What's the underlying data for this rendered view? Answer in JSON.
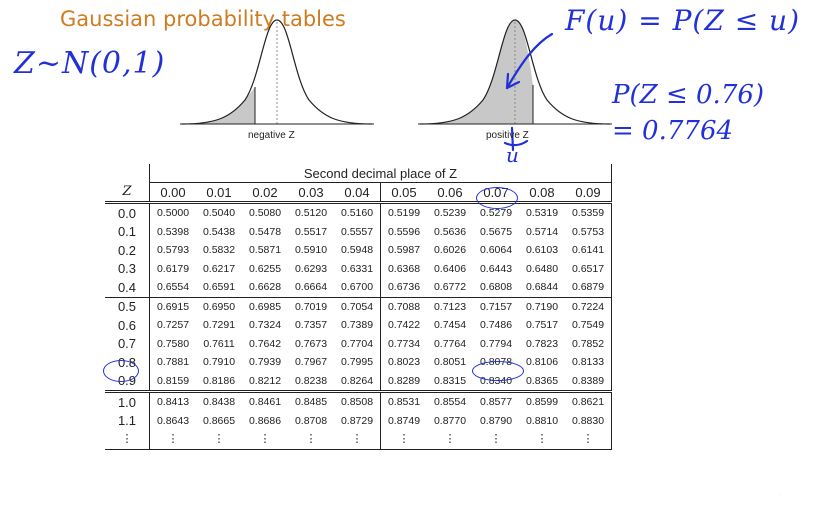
{
  "title": "Gaussian probability tables",
  "annotations": {
    "distribution": "Z~N(0,1)",
    "definition": "F(u) = P(Z ≤ u)",
    "probability": "P(Z ≤ 0.76)",
    "value": "= 0.7764",
    "u_label": "u"
  },
  "curves": {
    "negative_label": "negative Z",
    "positive_label": "positive Z"
  },
  "table": {
    "span_header": "Second decimal place of Z",
    "z_header": "Z",
    "columns": [
      "0.00",
      "0.01",
      "0.02",
      "0.03",
      "0.04",
      "0.05",
      "0.06",
      "0.07",
      "0.08",
      "0.09"
    ],
    "rows": [
      {
        "z": "0.0",
        "values": [
          "0.5000",
          "0.5040",
          "0.5080",
          "0.5120",
          "0.5160",
          "0.5199",
          "0.5239",
          "0.5279",
          "0.5319",
          "0.5359"
        ]
      },
      {
        "z": "0.1",
        "values": [
          "0.5398",
          "0.5438",
          "0.5478",
          "0.5517",
          "0.5557",
          "0.5596",
          "0.5636",
          "0.5675",
          "0.5714",
          "0.5753"
        ]
      },
      {
        "z": "0.2",
        "values": [
          "0.5793",
          "0.5832",
          "0.5871",
          "0.5910",
          "0.5948",
          "0.5987",
          "0.6026",
          "0.6064",
          "0.6103",
          "0.6141"
        ]
      },
      {
        "z": "0.3",
        "values": [
          "0.6179",
          "0.6217",
          "0.6255",
          "0.6293",
          "0.6331",
          "0.6368",
          "0.6406",
          "0.6443",
          "0.6480",
          "0.6517"
        ]
      },
      {
        "z": "0.4",
        "values": [
          "0.6554",
          "0.6591",
          "0.6628",
          "0.6664",
          "0.6700",
          "0.6736",
          "0.6772",
          "0.6808",
          "0.6844",
          "0.6879"
        ]
      },
      {
        "z": "0.5",
        "values": [
          "0.6915",
          "0.6950",
          "0.6985",
          "0.7019",
          "0.7054",
          "0.7088",
          "0.7123",
          "0.7157",
          "0.7190",
          "0.7224"
        ]
      },
      {
        "z": "0.6",
        "values": [
          "0.7257",
          "0.7291",
          "0.7324",
          "0.7357",
          "0.7389",
          "0.7422",
          "0.7454",
          "0.7486",
          "0.7517",
          "0.7549"
        ]
      },
      {
        "z": "0.7",
        "values": [
          "0.7580",
          "0.7611",
          "0.7642",
          "0.7673",
          "0.7704",
          "0.7734",
          "0.7764",
          "0.7794",
          "0.7823",
          "0.7852"
        ]
      },
      {
        "z": "0.8",
        "values": [
          "0.7881",
          "0.7910",
          "0.7939",
          "0.7967",
          "0.7995",
          "0.8023",
          "0.8051",
          "0.8078",
          "0.8106",
          "0.8133"
        ]
      },
      {
        "z": "0.9",
        "values": [
          "0.8159",
          "0.8186",
          "0.8212",
          "0.8238",
          "0.8264",
          "0.8289",
          "0.8315",
          "0.8340",
          "0.8365",
          "0.8389"
        ]
      },
      {
        "z": "1.0",
        "values": [
          "0.8413",
          "0.8438",
          "0.8461",
          "0.8485",
          "0.8508",
          "0.8531",
          "0.8554",
          "0.8577",
          "0.8599",
          "0.8621"
        ]
      },
      {
        "z": "1.1",
        "values": [
          "0.8643",
          "0.8665",
          "0.8686",
          "0.8708",
          "0.8729",
          "0.8749",
          "0.8770",
          "0.8790",
          "0.8810",
          "0.8830"
        ]
      },
      {
        "z": "⋮",
        "values": [
          "⋮",
          "⋮",
          "⋮",
          "⋮",
          "⋮",
          "⋮",
          "⋮",
          "⋮",
          "⋮",
          "⋮"
        ]
      }
    ]
  },
  "highlight": {
    "row": "0.7",
    "column": "0.06",
    "cell": "0.7764"
  },
  "colors": {
    "title": "#cf7b1f",
    "ink": "#2130d8",
    "shade": "#c8c8c8"
  }
}
